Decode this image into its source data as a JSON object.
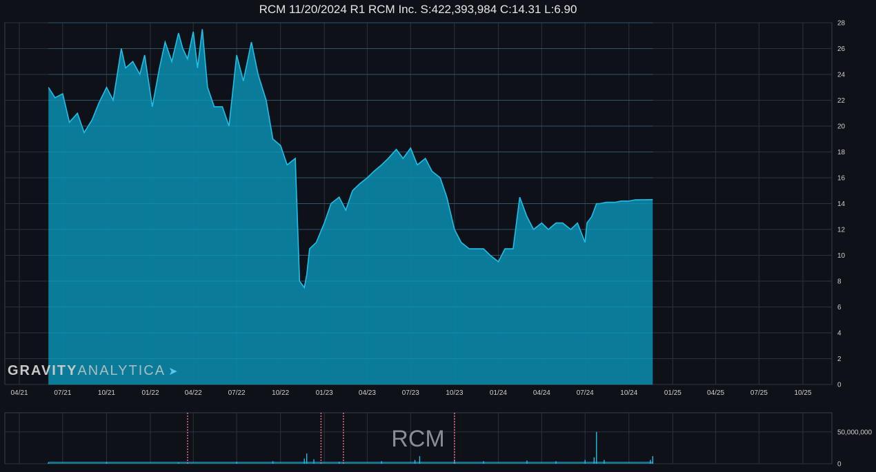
{
  "chart_data": [
    {
      "type": "area",
      "title": "RCM 11/20/2024 R1 RCM Inc. S:422,393,984 C:14.31 L:6.90",
      "color": "#1fbfe9",
      "fill": "#0a86a6",
      "ylim": [
        0,
        28
      ],
      "y_ticks": [
        "0",
        "2",
        "4",
        "6",
        "8",
        "10",
        "12",
        "14",
        "16",
        "18",
        "20",
        "22",
        "24",
        "26",
        "28"
      ],
      "x_ticks": [
        "04/21",
        "07/21",
        "10/21",
        "01/22",
        "04/22",
        "07/22",
        "10/22",
        "01/23",
        "04/23",
        "07/23",
        "10/23",
        "01/24",
        "04/24",
        "07/24",
        "10/24",
        "01/25",
        "04/25",
        "07/25",
        "10/25"
      ],
      "series": [
        {
          "x": [
            "2021-06-01",
            "2021-06-15",
            "2021-07-01",
            "2021-07-15",
            "2021-08-01",
            "2021-08-15",
            "2021-09-01",
            "2021-09-15",
            "2021-10-01",
            "2021-10-15",
            "2021-11-01",
            "2021-11-10",
            "2021-11-25",
            "2021-12-10",
            "2021-12-20",
            "2022-01-05",
            "2022-01-20",
            "2022-02-01",
            "2022-02-15",
            "2022-03-01",
            "2022-03-10",
            "2022-03-20",
            "2022-04-01",
            "2022-04-10",
            "2022-04-20",
            "2022-05-01",
            "2022-05-15",
            "2022-06-01",
            "2022-06-15",
            "2022-07-01",
            "2022-07-15",
            "2022-08-01",
            "2022-08-15",
            "2022-09-01",
            "2022-09-15",
            "2022-10-01",
            "2022-10-15",
            "2022-11-01",
            "2022-11-10",
            "2022-11-20",
            "2022-11-25",
            "2022-12-01",
            "2022-12-15",
            "2023-01-01",
            "2023-01-15",
            "2023-02-01",
            "2023-02-15",
            "2023-03-01",
            "2023-03-15",
            "2023-04-01",
            "2023-04-15",
            "2023-05-01",
            "2023-05-15",
            "2023-06-01",
            "2023-06-15",
            "2023-07-01",
            "2023-07-15",
            "2023-08-01",
            "2023-08-15",
            "2023-09-01",
            "2023-09-15",
            "2023-10-01",
            "2023-10-15",
            "2023-11-01",
            "2023-11-15",
            "2023-12-01",
            "2023-12-15",
            "2024-01-01",
            "2024-01-15",
            "2024-02-01",
            "2024-02-15",
            "2024-03-01",
            "2024-03-15",
            "2024-04-01",
            "2024-04-15",
            "2024-05-01",
            "2024-05-15",
            "2024-06-01",
            "2024-06-15",
            "2024-07-01",
            "2024-07-05",
            "2024-07-15",
            "2024-07-25",
            "2024-08-01",
            "2024-08-15",
            "2024-09-01",
            "2024-09-15",
            "2024-10-01",
            "2024-10-15",
            "2024-11-01",
            "2024-11-20"
          ],
          "y": [
            23.0,
            22.2,
            22.5,
            20.3,
            21.0,
            19.5,
            20.5,
            21.8,
            23.0,
            22.0,
            26.0,
            24.5,
            25.0,
            24.0,
            25.5,
            21.5,
            24.5,
            26.5,
            25.0,
            27.2,
            26.0,
            25.2,
            27.3,
            24.5,
            27.5,
            23.0,
            21.5,
            21.5,
            20.0,
            25.5,
            23.5,
            26.5,
            24.0,
            22.0,
            19.0,
            18.5,
            17.0,
            17.5,
            8.0,
            7.5,
            8.5,
            10.5,
            11.0,
            12.5,
            14.0,
            14.5,
            13.5,
            15.0,
            15.5,
            16.0,
            16.5,
            17.0,
            17.5,
            18.2,
            17.5,
            18.3,
            17.0,
            17.5,
            16.5,
            16.0,
            14.5,
            12.0,
            11.0,
            10.5,
            10.5,
            10.5,
            10.0,
            9.5,
            10.5,
            10.5,
            14.5,
            13.0,
            12.0,
            12.5,
            12.0,
            12.5,
            12.5,
            12.0,
            12.5,
            11.0,
            12.5,
            13.0,
            14.0,
            14.0,
            14.1,
            14.1,
            14.2,
            14.2,
            14.3,
            14.3,
            14.31
          ]
        }
      ]
    },
    {
      "type": "bar",
      "title": "RCM",
      "color": "#1fbfe9",
      "ylim": [
        0,
        80000000
      ],
      "y_ticks": [
        "0",
        "50,000,000"
      ],
      "markers": [
        "2022-03-20",
        "2022-12-25",
        "2023-02-10",
        "2023-10-01"
      ],
      "series": [
        {
          "x": [
            "2021-06-01",
            "2021-10-01",
            "2022-03-01",
            "2022-07-01",
            "2022-09-15",
            "2022-11-20",
            "2022-11-25",
            "2022-12-10",
            "2023-02-01",
            "2023-05-01",
            "2023-07-10",
            "2023-07-20",
            "2023-10-01",
            "2023-12-01",
            "2024-03-01",
            "2024-05-01",
            "2024-07-01",
            "2024-07-20",
            "2024-07-25",
            "2024-08-10",
            "2024-11-15",
            "2024-11-20"
          ],
          "y": [
            2000000,
            2500000,
            2000000,
            3000000,
            4000000,
            8000000,
            16000000,
            7000000,
            3000000,
            4000000,
            6000000,
            12000000,
            5000000,
            4000000,
            5000000,
            4000000,
            6000000,
            10000000,
            50000000,
            6000000,
            6000000,
            12000000
          ]
        }
      ]
    }
  ],
  "watermark": {
    "part1": "GRAVITY",
    "part2": "ANALYTICA"
  }
}
